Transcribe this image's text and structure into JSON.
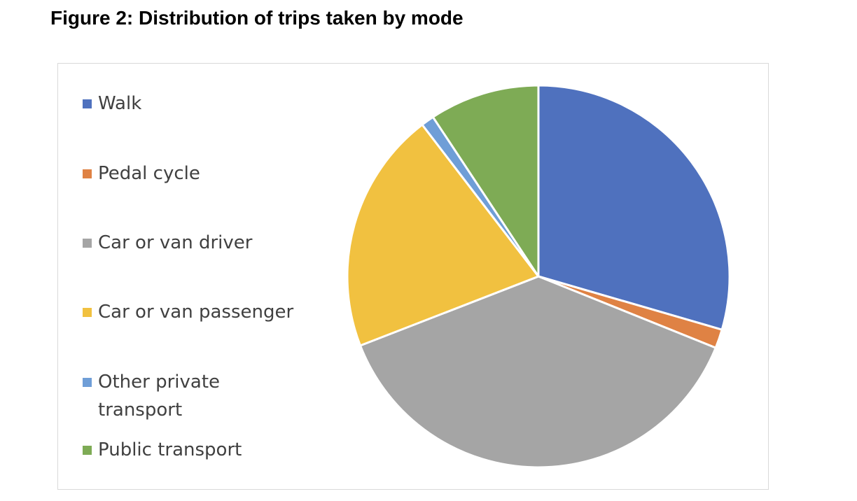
{
  "figure": {
    "title": "Figure 2: Distribution of trips taken by mode"
  },
  "chart_data": {
    "type": "pie",
    "title": "",
    "legend_position": "left",
    "start_angle_deg": 0,
    "direction": "clockwise",
    "slices": [
      {
        "name": "Walk",
        "value": 29.5,
        "color": "#4f71be"
      },
      {
        "name": "Pedal cycle",
        "value": 1.6,
        "color": "#df8244"
      },
      {
        "name": "Car or van driver",
        "value": 38.0,
        "color": "#a5a5a5"
      },
      {
        "name": "Car or van passenger",
        "value": 20.5,
        "color": "#f1c140"
      },
      {
        "name": "Other private transport",
        "value": 1.1,
        "color": "#6f9ed7"
      },
      {
        "name": "Public transport",
        "value": 9.3,
        "color": "#7eab55"
      }
    ]
  }
}
